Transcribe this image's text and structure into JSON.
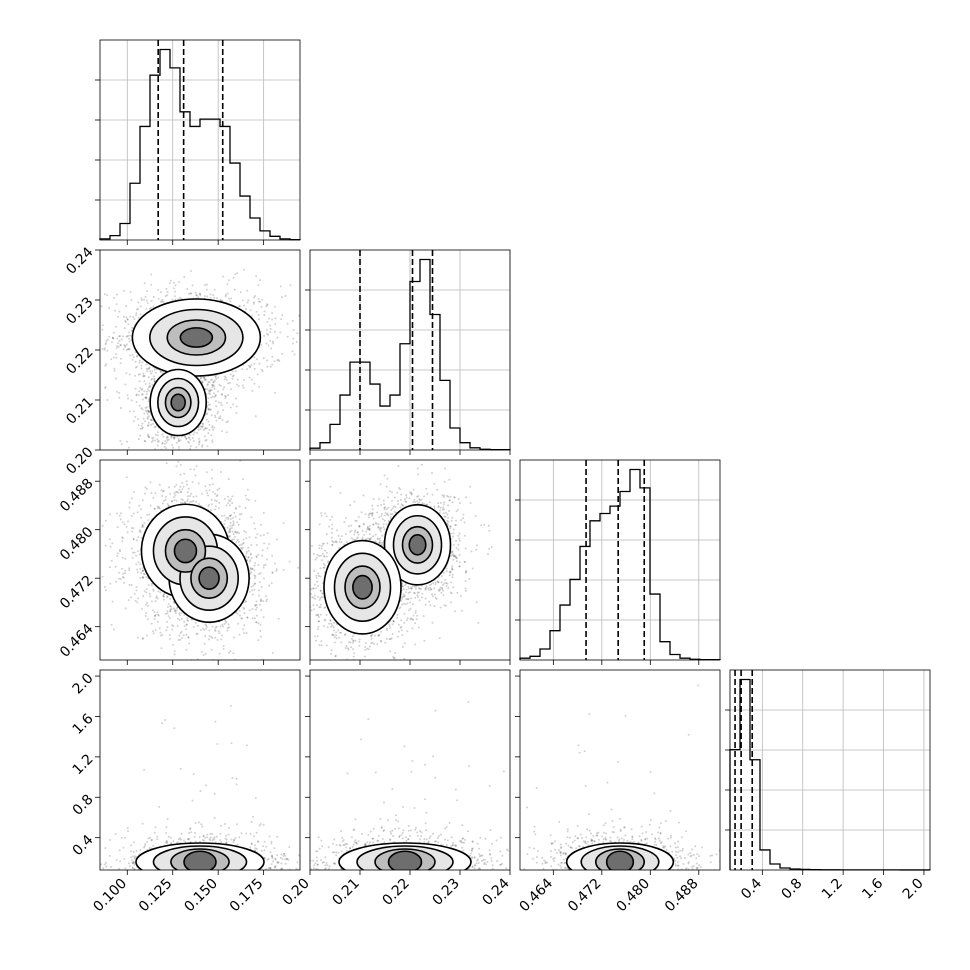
{
  "figure": {
    "type": "corner-plot"
  },
  "chart_data": {
    "type": "corner",
    "parameters": 4,
    "title": "",
    "grid": true,
    "quantile_line_style": "dashed",
    "axes": [
      {
        "index": 0,
        "range": [
          0.085,
          0.195
        ],
        "ticks": [
          0.1,
          0.125,
          0.15,
          0.175
        ],
        "tick_labels": [
          "0.100",
          "0.125",
          "0.150",
          "0.175"
        ]
      },
      {
        "index": 1,
        "range": [
          0.2,
          0.24
        ],
        "ticks": [
          0.2,
          0.21,
          0.22,
          0.23,
          0.24
        ],
        "tick_labels": [
          "0.20",
          "0.21",
          "0.22",
          "0.23",
          "0.24"
        ]
      },
      {
        "index": 2,
        "range": [
          0.4585,
          0.4915
        ],
        "ticks": [
          0.464,
          0.472,
          0.48,
          0.488
        ],
        "tick_labels": [
          "0.464",
          "0.472",
          "0.480",
          "0.488"
        ]
      },
      {
        "index": 3,
        "range": [
          0.08,
          2.06
        ],
        "ticks": [
          0.4,
          0.8,
          1.2,
          1.6,
          2.0
        ],
        "tick_labels": [
          "0.4",
          "0.8",
          "1.2",
          "1.6",
          "2.0"
        ]
      }
    ],
    "histograms": [
      {
        "param": 0,
        "bin_edges": [
          0.085,
          0.0905,
          0.096,
          0.1015,
          0.107,
          0.1125,
          0.118,
          0.1235,
          0.129,
          0.1345,
          0.14,
          0.1455,
          0.151,
          0.1565,
          0.162,
          0.1675,
          0.173,
          0.1785,
          0.184,
          0.1895,
          0.195
        ],
        "counts": [
          0.3,
          1.2,
          4.5,
          15.5,
          31,
          45,
          52,
          47,
          35,
          31,
          33,
          33,
          31,
          21,
          12,
          6,
          2.5,
          1,
          0.3,
          0.1
        ],
        "quantiles": [
          0.117,
          0.131,
          0.1525
        ]
      },
      {
        "param": 1,
        "bin_edges": [
          0.2,
          0.202,
          0.204,
          0.206,
          0.208,
          0.21,
          0.212,
          0.214,
          0.216,
          0.218,
          0.22,
          0.222,
          0.224,
          0.226,
          0.228,
          0.23,
          0.232,
          0.234,
          0.236,
          0.238,
          0.24
        ],
        "counts": [
          0.5,
          2,
          7,
          15,
          24,
          24,
          18,
          12,
          15,
          29,
          46,
          52,
          37,
          19,
          6,
          2,
          0.6,
          0.2,
          0.1,
          0.1
        ],
        "quantiles": [
          0.21,
          0.2205,
          0.2245
        ]
      },
      {
        "param": 2,
        "bin_edges": [
          0.4585,
          0.46015,
          0.4618,
          0.46345,
          0.4651,
          0.46675,
          0.4684,
          0.47005,
          0.4717,
          0.47335,
          0.475,
          0.47665,
          0.4783,
          0.47995,
          0.4816,
          0.48325,
          0.4849,
          0.48655,
          0.4882,
          0.48985,
          0.4915
        ],
        "counts": [
          0.5,
          1,
          3,
          8,
          15,
          22,
          31,
          38,
          40,
          42,
          46,
          52,
          47,
          18,
          5,
          1.5,
          0.5,
          0.2,
          0.1,
          0.1
        ],
        "quantiles": [
          0.4694,
          0.4747,
          0.479
        ]
      },
      {
        "param": 3,
        "bin_edges": [
          0.08,
          0.179,
          0.278,
          0.377,
          0.476,
          0.575,
          0.674,
          0.773,
          0.872,
          0.971,
          1.07,
          1.169,
          1.268,
          1.367,
          1.466,
          1.565,
          1.664,
          1.763,
          1.862,
          1.961,
          2.06
        ],
        "counts": [
          60,
          95,
          55,
          10,
          3,
          1,
          0.5,
          0.3,
          0.2,
          0.1,
          0.1,
          0.05,
          0.05,
          0.05,
          0.05,
          0.05,
          0.05,
          0.03,
          0.03,
          0.02
        ],
        "quantiles": [
          0.13,
          0.19,
          0.3
        ]
      }
    ],
    "joint": [
      {
        "x_param": 0,
        "y_param": 1,
        "modes": [
          {
            "x": 0.138,
            "y": 0.2225,
            "sx": 0.016,
            "sy": 0.0035
          },
          {
            "x": 0.128,
            "y": 0.2095,
            "sx": 0.007,
            "sy": 0.003
          }
        ]
      },
      {
        "x_param": 0,
        "y_param": 2,
        "modes": [
          {
            "x": 0.132,
            "y": 0.4765,
            "sx": 0.011,
            "sy": 0.0035
          },
          {
            "x": 0.145,
            "y": 0.472,
            "sx": 0.01,
            "sy": 0.0033
          }
        ]
      },
      {
        "x_param": 1,
        "y_param": 2,
        "modes": [
          {
            "x": 0.2215,
            "y": 0.4775,
            "sx": 0.003,
            "sy": 0.003
          },
          {
            "x": 0.2105,
            "y": 0.4705,
            "sx": 0.0035,
            "sy": 0.0035
          }
        ]
      },
      {
        "x_param": 0,
        "y_param": 3,
        "modes": [
          {
            "x": 0.14,
            "y": 0.2,
            "sx": 0.016,
            "sy": 0.12
          }
        ]
      },
      {
        "x_param": 1,
        "y_param": 3,
        "modes": [
          {
            "x": 0.219,
            "y": 0.2,
            "sx": 0.006,
            "sy": 0.12
          }
        ]
      },
      {
        "x_param": 2,
        "y_param": 3,
        "modes": [
          {
            "x": 0.475,
            "y": 0.2,
            "sx": 0.004,
            "sy": 0.12
          }
        ]
      }
    ]
  }
}
